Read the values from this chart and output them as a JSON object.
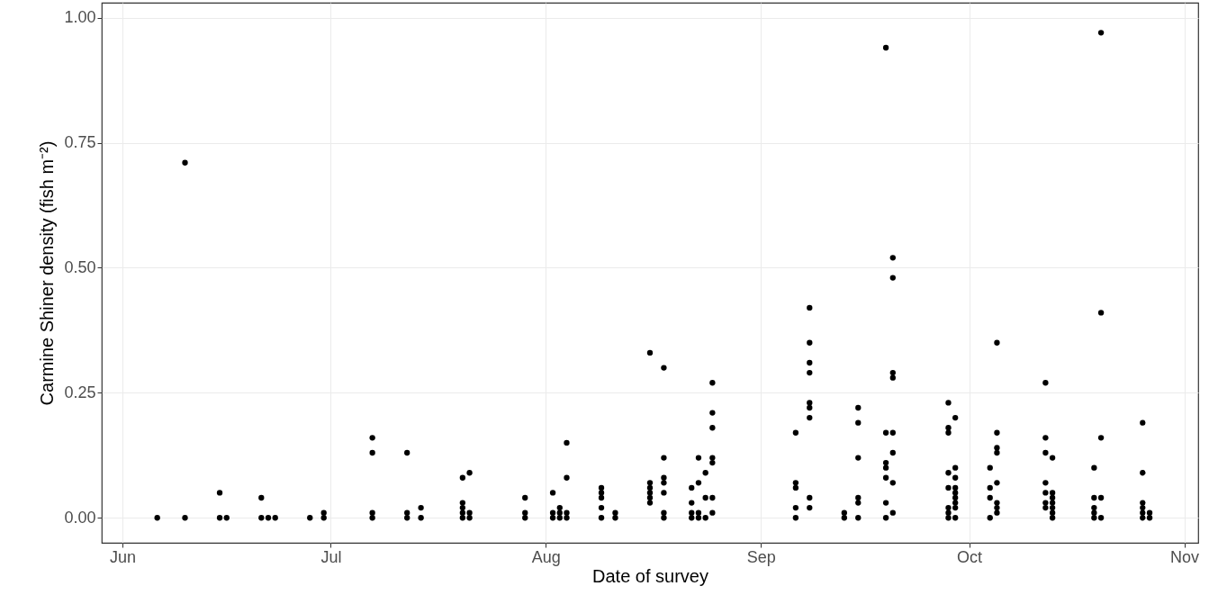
{
  "chart_data": {
    "type": "scatter",
    "xlabel": "Date of survey",
    "ylabel": "Carmine Shiner density (fish m⁻²)",
    "x": [
      "--06-06",
      "--06-10",
      "--06-10",
      "--06-15",
      "--06-15",
      "--06-16",
      "--06-21",
      "--06-21",
      "--06-22",
      "--06-23",
      "--06-28",
      "--06-30",
      "--06-30",
      "--07-07",
      "--07-07",
      "--07-07",
      "--07-07",
      "--07-12",
      "--07-12",
      "--07-12",
      "--07-14",
      "--07-14",
      "--07-20",
      "--07-20",
      "--07-20",
      "--07-20",
      "--07-20",
      "--07-21",
      "--07-21",
      "--07-21",
      "--07-29",
      "--07-29",
      "--07-29",
      "--08-02",
      "--08-02",
      "--08-02",
      "--08-03",
      "--08-03",
      "--08-03",
      "--08-04",
      "--08-04",
      "--08-04",
      "--08-04",
      "--08-09",
      "--08-09",
      "--08-09",
      "--08-09",
      "--08-09",
      "--08-11",
      "--08-11",
      "--08-16",
      "--08-16",
      "--08-16",
      "--08-16",
      "--08-16",
      "--08-16",
      "--08-18",
      "--08-18",
      "--08-18",
      "--08-18",
      "--08-18",
      "--08-18",
      "--08-18",
      "--08-22",
      "--08-22",
      "--08-22",
      "--08-22",
      "--08-23",
      "--08-23",
      "--08-23",
      "--08-23",
      "--08-24",
      "--08-24",
      "--08-24",
      "--08-25",
      "--08-25",
      "--08-25",
      "--08-25",
      "--08-25",
      "--08-25",
      "--08-25",
      "--09-06",
      "--09-06",
      "--09-06",
      "--09-06",
      "--09-06",
      "--09-08",
      "--09-08",
      "--09-08",
      "--09-08",
      "--09-08",
      "--09-08",
      "--09-08",
      "--09-08",
      "--09-08",
      "--09-13",
      "--09-13",
      "--09-15",
      "--09-15",
      "--09-15",
      "--09-15",
      "--09-15",
      "--09-15",
      "--09-19",
      "--09-19",
      "--09-19",
      "--09-19",
      "--09-19",
      "--09-19",
      "--09-19",
      "--09-20",
      "--09-20",
      "--09-20",
      "--09-20",
      "--09-20",
      "--09-20",
      "--09-20",
      "--09-20",
      "--09-28",
      "--09-28",
      "--09-28",
      "--09-28",
      "--09-28",
      "--09-28",
      "--09-28",
      "--09-28",
      "--09-29",
      "--09-29",
      "--09-29",
      "--09-29",
      "--09-29",
      "--09-29",
      "--09-29",
      "--09-29",
      "--09-29",
      "--10-04",
      "--10-04",
      "--10-04",
      "--10-04",
      "--10-05",
      "--10-05",
      "--10-05",
      "--10-05",
      "--10-05",
      "--10-05",
      "--10-05",
      "--10-05",
      "--10-12",
      "--10-12",
      "--10-12",
      "--10-12",
      "--10-12",
      "--10-12",
      "--10-12",
      "--10-13",
      "--10-13",
      "--10-13",
      "--10-13",
      "--10-13",
      "--10-13",
      "--10-13",
      "--10-19",
      "--10-19",
      "--10-19",
      "--10-19",
      "--10-19",
      "--10-20",
      "--10-20",
      "--10-20",
      "--10-20",
      "--10-20",
      "--10-26",
      "--10-26",
      "--10-26",
      "--10-26",
      "--10-26",
      "--10-26",
      "--10-27",
      "--10-27"
    ],
    "series": [
      {
        "color": "#000000",
        "values": [
          0,
          0.71,
          0,
          0.05,
          0,
          0,
          0.04,
          0,
          0,
          0,
          0,
          0.01,
          0,
          0.16,
          0.13,
          0.01,
          0,
          0.13,
          0.01,
          0,
          0.02,
          0,
          0.08,
          0.03,
          0.02,
          0.01,
          0,
          0.09,
          0.01,
          0,
          0.04,
          0.01,
          0,
          0.05,
          0.01,
          0,
          0.02,
          0.01,
          0,
          0.15,
          0.08,
          0.01,
          0,
          0.06,
          0.05,
          0.04,
          0.02,
          0,
          0.01,
          0,
          0.33,
          0.07,
          0.06,
          0.05,
          0.04,
          0.03,
          0.3,
          0.12,
          0.08,
          0.07,
          0.05,
          0.01,
          0,
          0.06,
          0.03,
          0.01,
          0,
          0.12,
          0.07,
          0.01,
          0,
          0.09,
          0.04,
          0,
          0.27,
          0.21,
          0.18,
          0.12,
          0.11,
          0.04,
          0.01,
          0.17,
          0.07,
          0.06,
          0.02,
          0,
          0.42,
          0.35,
          0.31,
          0.29,
          0.23,
          0.22,
          0.2,
          0.04,
          0.02,
          0.01,
          0,
          0.22,
          0.19,
          0.12,
          0.04,
          0.03,
          0,
          0.94,
          0.17,
          0.11,
          0.1,
          0.08,
          0.03,
          0,
          0.52,
          0.48,
          0.29,
          0.28,
          0.17,
          0.13,
          0.07,
          0.01,
          0.23,
          0.18,
          0.17,
          0.09,
          0.06,
          0.02,
          0.01,
          0,
          0.2,
          0.1,
          0.08,
          0.06,
          0.05,
          0.04,
          0.03,
          0.02,
          0,
          0.1,
          0.06,
          0.04,
          0,
          0.35,
          0.17,
          0.14,
          0.13,
          0.07,
          0.03,
          0.02,
          0.01,
          0.27,
          0.16,
          0.13,
          0.07,
          0.05,
          0.03,
          0.02,
          0.12,
          0.05,
          0.04,
          0.03,
          0.02,
          0.01,
          0,
          0.1,
          0.04,
          0.02,
          0.01,
          0,
          0.97,
          0.41,
          0.16,
          0.04,
          0,
          0.19,
          0.09,
          0.03,
          0.02,
          0.01,
          0,
          0.01,
          0
        ]
      }
    ],
    "xlim": [
      "--05-29",
      "--11-03"
    ],
    "xticks": [
      {
        "value": "--06-01",
        "label": "Jun"
      },
      {
        "value": "--07-01",
        "label": "Jul"
      },
      {
        "value": "--08-01",
        "label": "Aug"
      },
      {
        "value": "--09-01",
        "label": "Sep"
      },
      {
        "value": "--10-01",
        "label": "Oct"
      },
      {
        "value": "--11-01",
        "label": "Nov"
      }
    ],
    "ylim": [
      -0.05,
      1.03
    ],
    "yticks": [
      {
        "value": 0,
        "label": "0.00"
      },
      {
        "value": 0.25,
        "label": "0.25"
      },
      {
        "value": 0.5,
        "label": "0.50"
      },
      {
        "value": 0.75,
        "label": "0.75"
      },
      {
        "value": 1,
        "label": "1.00"
      }
    ],
    "grid": true,
    "marker": "circle"
  }
}
